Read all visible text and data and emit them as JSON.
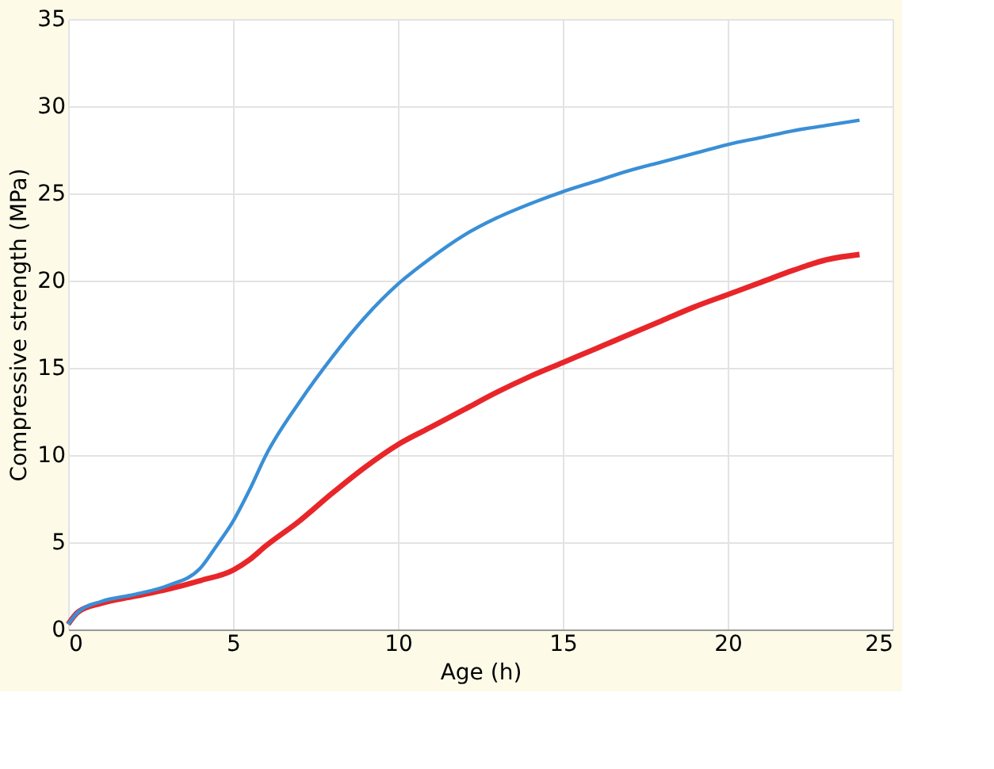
{
  "chart_data": {
    "type": "line",
    "xlabel": "Age (h)",
    "ylabel": "Compressive strength (MPa)",
    "xlim": [
      0,
      25
    ],
    "xticks": [
      0,
      5,
      10,
      15,
      20,
      25
    ],
    "ylim": [
      0,
      35
    ],
    "yticks": [
      0,
      5,
      10,
      15,
      20,
      25,
      30,
      35
    ],
    "grid": true,
    "line_style": "solid",
    "series": [
      {
        "color": "#e8262a",
        "x": [
          0,
          0.3,
          1,
          2,
          3,
          4,
          5,
          5.5,
          6,
          7,
          8,
          9,
          10,
          11,
          12,
          13,
          14,
          15,
          16,
          17,
          18,
          19,
          20,
          21,
          22,
          23,
          24
        ],
        "values": [
          0.3,
          1.0,
          1.5,
          1.9,
          2.3,
          2.8,
          3.4,
          4,
          4.8,
          6.2,
          7.8,
          9.3,
          10.6,
          11.6,
          12.6,
          13.6,
          14.5,
          15.3,
          16.1,
          16.9,
          17.7,
          18.5,
          19.2,
          19.9,
          20.6,
          21.2,
          21.5
        ]
      },
      {
        "color": "#3a8fd6",
        "x": [
          0,
          0.3,
          1,
          2,
          3,
          4,
          4.5,
          5,
          5.5,
          6,
          7,
          8,
          9,
          10,
          11,
          12,
          13,
          14,
          15,
          16,
          17,
          18,
          19,
          20,
          21,
          22,
          23,
          24
        ],
        "values": [
          0.3,
          1.0,
          1.6,
          2.0,
          2.5,
          3.5,
          4.8,
          6.2,
          8,
          10,
          13,
          15.6,
          17.9,
          19.8,
          21.3,
          22.6,
          23.6,
          24.4,
          25.1,
          25.7,
          26.3,
          26.8,
          27.3,
          27.8,
          28.2,
          28.6,
          28.9,
          29.2
        ]
      }
    ]
  }
}
